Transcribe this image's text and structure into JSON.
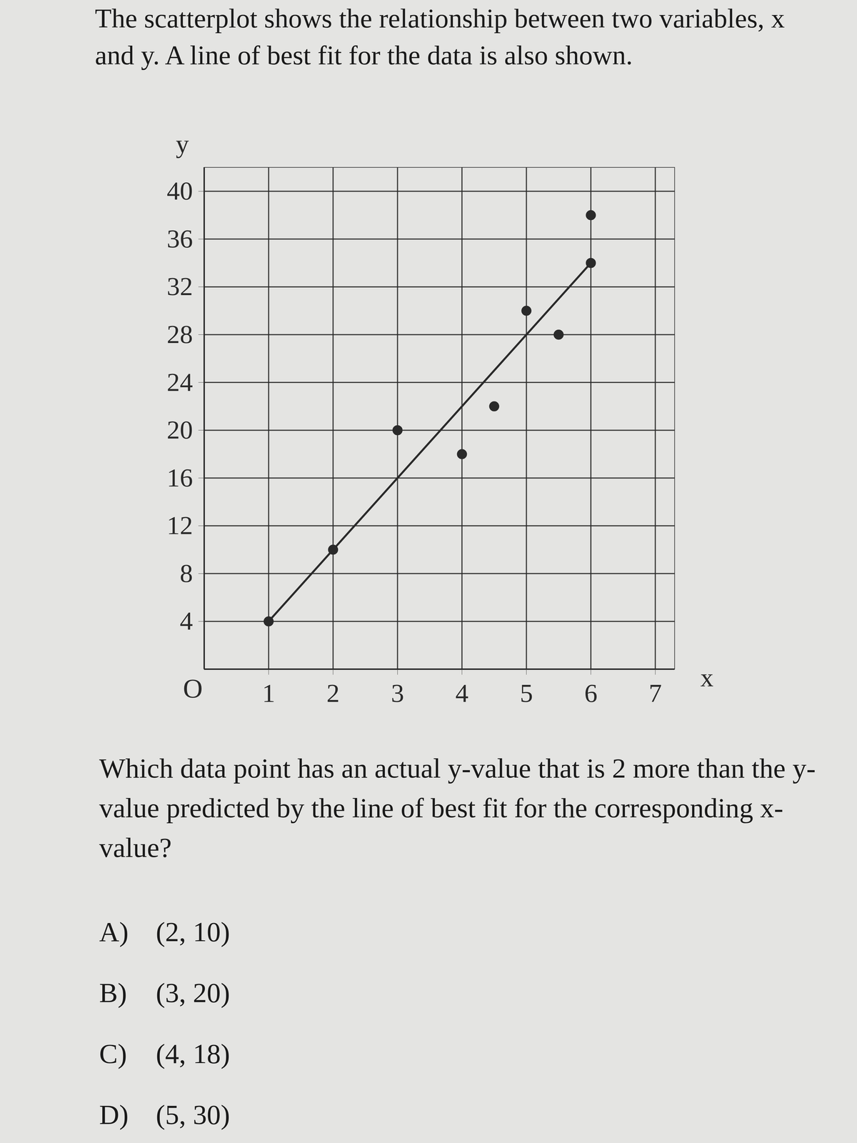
{
  "intro": "The scatterplot shows the relationship between two variables, x and y. A line of best fit for the data is also shown.",
  "chart_data": {
    "type": "scatter",
    "x": [
      1,
      2,
      3,
      4,
      4.5,
      5,
      5.5,
      6,
      6
    ],
    "values": [
      4,
      10,
      20,
      18,
      22,
      30,
      28,
      38,
      34
    ],
    "fit_line": {
      "x": [
        1,
        6
      ],
      "y": [
        4,
        34
      ]
    },
    "x_label": "x",
    "y_label": "y",
    "origin_label": "O",
    "xlim": [
      0,
      7.3
    ],
    "ylim": [
      0,
      42
    ],
    "xticks": [
      1,
      2,
      3,
      4,
      5,
      6,
      7
    ],
    "yticks": [
      4,
      8,
      12,
      16,
      20,
      24,
      28,
      32,
      36,
      40
    ],
    "grid": true,
    "color": "#2a2a2a"
  },
  "question": "Which data point has an actual y-value that is 2 more than the y-value predicted by the line of best fit for the corresponding x-value?",
  "choices": [
    {
      "letter": "A)",
      "text": "(2, 10)"
    },
    {
      "letter": "B)",
      "text": "(3, 20)"
    },
    {
      "letter": "C)",
      "text": "(4, 18)"
    },
    {
      "letter": "D)",
      "text": "(5, 30)"
    }
  ]
}
